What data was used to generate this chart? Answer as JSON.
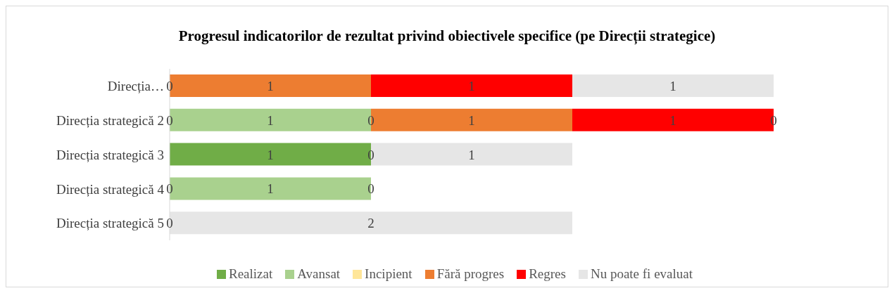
{
  "chart_data": {
    "type": "bar",
    "orientation": "horizontal",
    "stacked": true,
    "title": "Progresul indicatorilor de rezultat privind obiectivele specifice (pe Direcții strategice)",
    "categories": [
      "Direcția…",
      "Direcția strategică 2",
      "Direcția strategică 3",
      "Direcția strategică 4",
      "Direcția strategică 5"
    ],
    "series": [
      {
        "name": "Realizat",
        "color": "#70ad47",
        "values": [
          0,
          0,
          1,
          0,
          0
        ],
        "value_labels": [
          null,
          null,
          "1",
          null,
          null
        ]
      },
      {
        "name": "Avansat",
        "color": "#a9d18e",
        "values": [
          0,
          1,
          0,
          1,
          0
        ],
        "value_labels": [
          null,
          "1",
          null,
          "1",
          null
        ]
      },
      {
        "name": "Incipient",
        "color": "#ffe699",
        "values": [
          null,
          0,
          0,
          0,
          null
        ],
        "value_labels": [
          null,
          null,
          null,
          null,
          null
        ]
      },
      {
        "name": "Fără progres",
        "color": "#ed7d31",
        "values": [
          1,
          1,
          null,
          0,
          null
        ],
        "value_labels": [
          "1",
          "1",
          null,
          null,
          null
        ]
      },
      {
        "name": "Regres",
        "color": "#ff0000",
        "values": [
          1,
          1,
          null,
          null,
          null
        ],
        "value_labels": [
          "1",
          "1",
          null,
          null,
          null
        ]
      },
      {
        "name": "Nu poate fi evaluat",
        "color": "#e6e6e6",
        "values": [
          1,
          0,
          1,
          null,
          2
        ],
        "value_labels": [
          "1",
          null,
          "1",
          null,
          "2"
        ]
      }
    ],
    "annotations": [
      {
        "text": "0",
        "x": 0,
        "y": "Direcția…"
      },
      {
        "text": "0",
        "x": 0,
        "y": "Direcția strategică 2"
      },
      {
        "text": "0",
        "x": 1,
        "y": "Direcția strategică 2"
      },
      {
        "text": "0",
        "x": 3,
        "y": "Direcția strategică 2"
      },
      {
        "text": "0",
        "x": 1,
        "y": "Direcția strategică 3"
      },
      {
        "text": "0",
        "x": 0,
        "y": "Direcția strategică 4"
      },
      {
        "text": "0",
        "x": 1,
        "y": "Direcția strategică 4"
      },
      {
        "text": "0",
        "x": 0,
        "y": "Direcția strategică 5"
      }
    ],
    "tick_labels": "y",
    "legend": "bottom"
  }
}
